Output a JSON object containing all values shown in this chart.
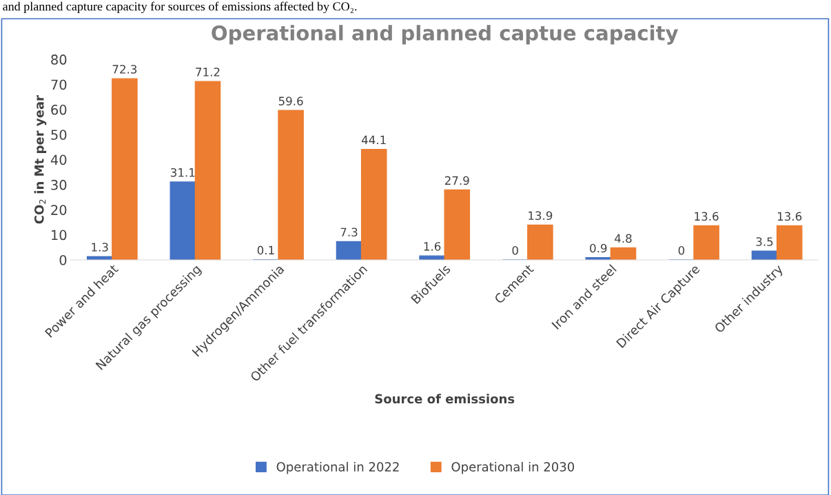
{
  "chart_data": {
    "type": "bar",
    "title": "Operational and planned captue capacity",
    "xlabel": "Source of emissions",
    "ylabel": "CO$_{2}$ in Mt per year",
    "annotations": [
      "and planned capture capacity for sources of emissions affected by CO₂."
    ],
    "categories": [
      "Power and heat",
      "Natural gas processing",
      "Hydrogen/Ammonia",
      "Other fuel transformation",
      "Biofuels",
      "Cement",
      "Iron and steel",
      "Direct Air Capture",
      "Other industry"
    ],
    "series": [
      {
        "name": "Operational in 2022",
        "color": "#4472c4",
        "values": [
          1.3,
          31.1,
          0.1,
          7.3,
          1.6,
          0,
          0.9,
          0,
          3.5
        ]
      },
      {
        "name": "Operational in 2030",
        "color": "#ed7d31",
        "values": [
          72.3,
          71.2,
          59.6,
          44.1,
          27.9,
          13.9,
          4.8,
          13.6,
          13.6
        ]
      }
    ],
    "ylim": [
      0,
      80
    ],
    "yticks": [
      0,
      10,
      20,
      30,
      40,
      50,
      60,
      70,
      80
    ],
    "data_labels": true,
    "grid": false,
    "legend": "bottom"
  }
}
